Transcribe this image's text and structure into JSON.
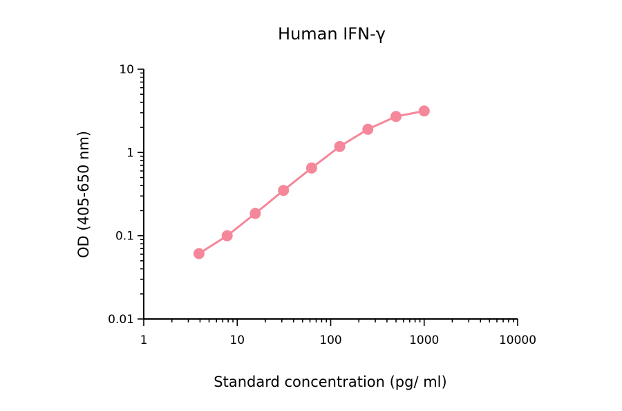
{
  "chart_data": {
    "type": "line",
    "title": "Human IFN-γ",
    "xlabel": "Standard concentration (pg/ ml)",
    "ylabel": "OD (405-650 nm)",
    "xscale": "log",
    "yscale": "log",
    "xlim": [
      1,
      10000
    ],
    "ylim": [
      0.01,
      10
    ],
    "xticks": [
      {
        "value": 1,
        "label": "1"
      },
      {
        "value": 10,
        "label": "10"
      },
      {
        "value": 100,
        "label": "100"
      },
      {
        "value": 1000,
        "label": "1000"
      },
      {
        "value": 10000,
        "label": "10000"
      }
    ],
    "yticks": [
      {
        "value": 0.01,
        "label": "0.01"
      },
      {
        "value": 0.1,
        "label": "0.1"
      },
      {
        "value": 1,
        "label": "1"
      },
      {
        "value": 10,
        "label": "10"
      }
    ],
    "grid": false,
    "series": [
      {
        "x": [
          3.9,
          7.8,
          15.6,
          31.25,
          62.5,
          125,
          250,
          500,
          1000
        ],
        "y": [
          0.061,
          0.1,
          0.185,
          0.35,
          0.65,
          1.18,
          1.9,
          2.7,
          3.15
        ],
        "color": "#f5879a"
      }
    ]
  }
}
